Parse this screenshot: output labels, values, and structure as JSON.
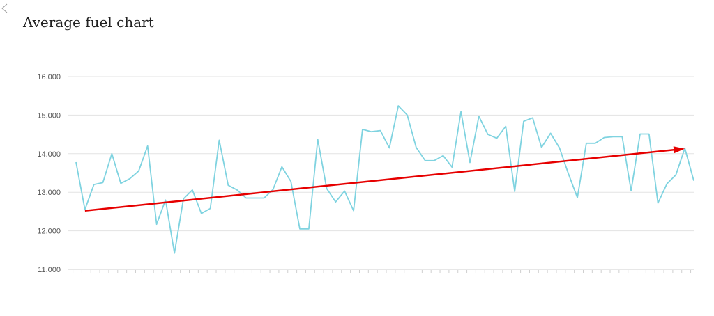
{
  "page": {
    "title": "Average fuel chart"
  },
  "colors": {
    "line": "#7fd3e0",
    "trend": "#e60000",
    "grid": "#e3e3e3",
    "tick_text": "#555555"
  },
  "chart_data": {
    "type": "line",
    "title": "Average fuel chart",
    "xlabel": "",
    "ylabel": "",
    "ylim": [
      11,
      16
    ],
    "yticks": [
      "11.000",
      "12.000",
      "13.000",
      "14.000",
      "15.000",
      "16.000"
    ],
    "grid": true,
    "x_labels_visible": false,
    "series": [
      {
        "values": [
          13.78,
          12.55,
          13.2,
          13.25,
          14.0,
          13.23,
          13.35,
          13.55,
          14.2,
          12.17,
          12.8,
          11.42,
          12.83,
          13.06,
          12.45,
          12.58,
          14.35,
          13.18,
          13.06,
          12.85,
          12.85,
          12.85,
          13.07,
          13.66,
          13.28,
          12.05,
          12.05,
          14.37,
          13.1,
          12.75,
          13.03,
          12.52,
          14.63,
          14.57,
          14.6,
          14.15,
          15.24,
          15.0,
          14.16,
          13.82,
          13.82,
          13.95,
          13.65,
          15.09,
          13.77,
          14.97,
          14.5,
          14.4,
          14.71,
          13.02,
          14.84,
          14.93,
          14.16,
          14.53,
          14.15,
          13.48,
          12.86,
          14.27,
          14.27,
          14.42,
          14.44,
          14.44,
          13.04,
          14.51,
          14.51,
          12.72,
          13.22,
          13.45,
          14.14,
          13.3
        ]
      }
    ],
    "annotations": [
      {
        "type": "arrow",
        "from_index": 1,
        "from_value": 12.52,
        "to_index": 68,
        "to_value": 14.13
      }
    ]
  }
}
